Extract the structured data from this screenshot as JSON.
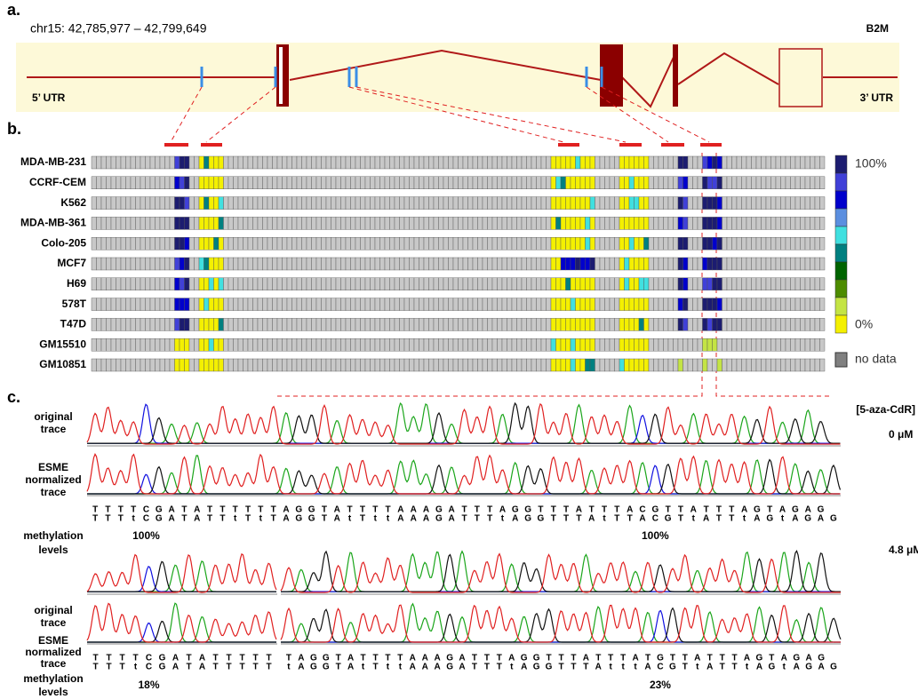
{
  "panel_a": {
    "label": "a.",
    "locus": "chr15: 42,785,977 – 42,799,649",
    "gene": "B2M",
    "utr5": "5’ UTR",
    "utr3": "3’ UTR"
  },
  "panel_b": {
    "label": "b.",
    "cell_lines": [
      "MDA-MB-231",
      "CCRF-CEM",
      "K562",
      "MDA-MB-361",
      "Colo-205",
      "MCF7",
      "H69",
      "578T",
      "T47D",
      "GM15510",
      "GM10851"
    ],
    "legend": {
      "high": "100%",
      "low": "0%",
      "no_data": "no data"
    }
  },
  "panel_c": {
    "label": "c.",
    "treatment_header": "[5-aza-CdR]",
    "conditions": [
      {
        "dose": "0 μM",
        "original_label": [
          "original",
          "trace"
        ],
        "normalized_label": [
          "ESME",
          "normalized",
          "trace"
        ],
        "methylation_label": [
          "methylation",
          "levels"
        ],
        "sequence_original": "TTTTCGATATTTTTTAGGTATTTTAAAGATTTAGGTTTATTTACGTTATTTAGTAGAG",
        "sequence_normalized": "TTTtCGATATTtTtTAGGTAtTttAAAGATTTtAGGTTTAtTTACGTtATTtAGtAGAG",
        "methylation_levels": [
          "100%",
          "100%"
        ]
      },
      {
        "dose": "4.8 μM",
        "original_label": [
          "original",
          "trace"
        ],
        "normalized_label": [
          "ESME",
          "normalized",
          "trace"
        ],
        "methylation_label": [
          "methylation",
          "levels"
        ],
        "sequence_original": "TTTTCGATATTTTTTAGGTATTTTAAAGATTTAGGTTTATTTATGTTATTTAGTAGAG",
        "sequence_normalized": "TTTtCGATATTTTTtAGGTAtTttAAAGATTTtAGGTTTAtttACGTtATTtAGtAGAG",
        "methylation_levels": [
          "18%",
          "23%"
        ]
      }
    ]
  }
}
